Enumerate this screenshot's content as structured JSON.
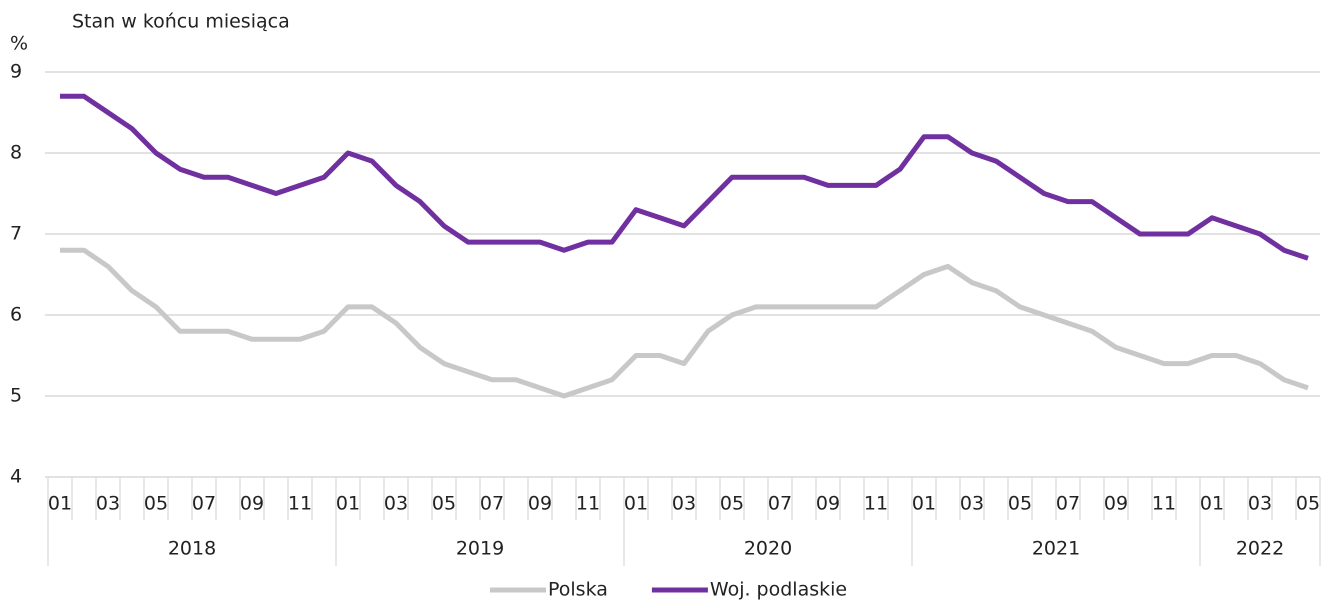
{
  "chart_data": {
    "type": "line",
    "subtitle": "Stan w końcu miesiąca",
    "y_label": "%",
    "categories": [
      "01",
      null,
      "03",
      null,
      "05",
      null,
      "07",
      null,
      "09",
      null,
      "11",
      null,
      "01",
      null,
      "03",
      null,
      "05",
      null,
      "07",
      null,
      "09",
      null,
      "11",
      null,
      "01",
      null,
      "03",
      null,
      "05",
      null,
      "07",
      null,
      "09",
      null,
      "11",
      null,
      "01",
      null,
      "03",
      null,
      "05",
      null,
      "07",
      null,
      "09",
      null,
      "11",
      null,
      "01",
      null,
      "03",
      null,
      "05"
    ],
    "year_categories": [
      "2018",
      null,
      null,
      null,
      null,
      null,
      null,
      null,
      null,
      null,
      null,
      null,
      "2019",
      null,
      null,
      null,
      null,
      null,
      null,
      null,
      null,
      null,
      null,
      null,
      "2020",
      null,
      null,
      null,
      null,
      null,
      null,
      null,
      null,
      null,
      null,
      null,
      "2021",
      null,
      null,
      null,
      null,
      null,
      null,
      null,
      null,
      null,
      null,
      null,
      "2022",
      null,
      null,
      null,
      null
    ],
    "series": [
      {
        "name": "Polska",
        "color": "#c8c8c8",
        "values": [
          6.8,
          6.8,
          6.6,
          6.3,
          6.1,
          5.8,
          5.8,
          5.8,
          5.7,
          5.7,
          5.7,
          5.8,
          6.1,
          6.1,
          5.9,
          5.6,
          5.4,
          5.3,
          5.2,
          5.2,
          5.1,
          5.0,
          5.1,
          5.2,
          5.5,
          5.5,
          5.4,
          5.8,
          6.0,
          6.1,
          6.1,
          6.1,
          6.1,
          6.1,
          6.1,
          6.3,
          6.5,
          6.6,
          6.4,
          6.3,
          6.1,
          6.0,
          5.9,
          5.8,
          5.6,
          5.5,
          5.4,
          5.4,
          5.5,
          5.5,
          5.4,
          5.2,
          5.1
        ]
      },
      {
        "name": "Woj. podlaskie",
        "color": "#7030a0",
        "values": [
          8.7,
          8.7,
          8.5,
          8.3,
          8.0,
          7.8,
          7.7,
          7.7,
          7.6,
          7.5,
          7.6,
          7.7,
          8.0,
          7.9,
          7.6,
          7.4,
          7.1,
          6.9,
          6.9,
          6.9,
          6.9,
          6.8,
          6.9,
          6.9,
          7.3,
          7.2,
          7.1,
          7.4,
          7.7,
          7.7,
          7.7,
          7.7,
          7.6,
          7.6,
          7.6,
          7.8,
          8.2,
          8.2,
          8.0,
          7.9,
          7.7,
          7.5,
          7.4,
          7.4,
          7.2,
          7.0,
          7.0,
          7.0,
          7.2,
          7.1,
          7.0,
          6.8,
          6.7
        ]
      }
    ],
    "ylim": [
      4,
      9
    ],
    "yticks": [
      4,
      5,
      6,
      7,
      8,
      9
    ],
    "grid": true,
    "legend": "bottom"
  }
}
